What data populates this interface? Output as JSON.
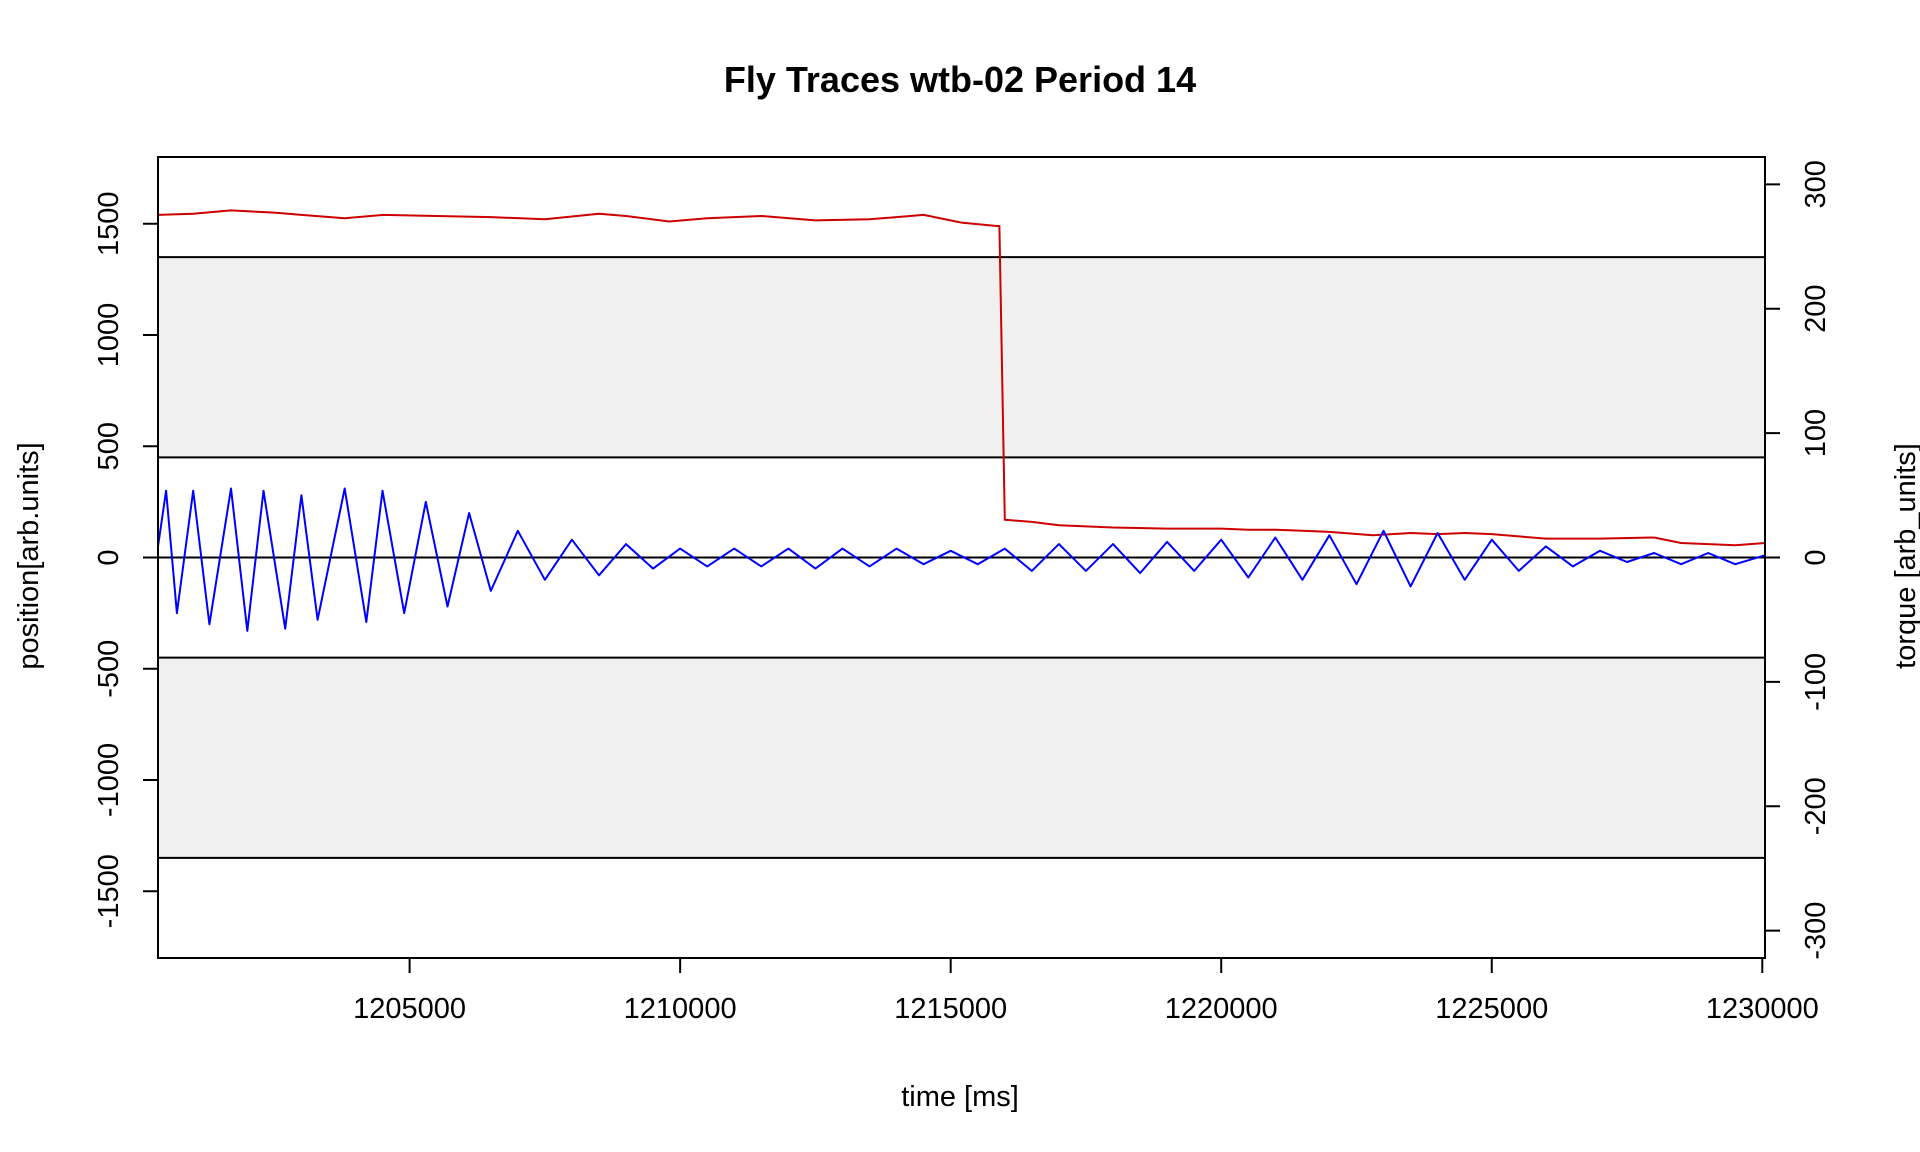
{
  "chart_data": {
    "type": "line",
    "title": "Fly Traces wtb-02 Period 14",
    "xlabel": "time [ms]",
    "ylabel_left": "position[arb.units]",
    "ylabel_right": "torque [arb_units]",
    "xlim": [
      1200350,
      1230050
    ],
    "ylim_left": [
      -1800,
      1800
    ],
    "ylim_right": [
      -322,
      322
    ],
    "x_ticks": [
      1205000,
      1210000,
      1215000,
      1220000,
      1225000,
      1230000
    ],
    "y_ticks_left": [
      -1500,
      -1000,
      -500,
      0,
      500,
      1000,
      1500
    ],
    "y_ticks_right": [
      -300,
      -200,
      -100,
      0,
      100,
      200,
      300
    ],
    "shaded_bands": [
      {
        "from": 450,
        "to": 1350
      },
      {
        "from": -1350,
        "to": -450
      }
    ],
    "hlines": [
      1350,
      450,
      0,
      -450,
      -1350
    ],
    "shade_color": "#f0f0f0",
    "series": [
      {
        "color": "#cc0000",
        "axis": "left",
        "points": [
          [
            1200350,
            1540
          ],
          [
            1201000,
            1545
          ],
          [
            1201700,
            1560
          ],
          [
            1202500,
            1550
          ],
          [
            1203000,
            1540
          ],
          [
            1203800,
            1525
          ],
          [
            1204500,
            1540
          ],
          [
            1205500,
            1535
          ],
          [
            1206500,
            1530
          ],
          [
            1207500,
            1520
          ],
          [
            1208500,
            1545
          ],
          [
            1209000,
            1535
          ],
          [
            1209800,
            1510
          ],
          [
            1210500,
            1525
          ],
          [
            1211500,
            1535
          ],
          [
            1212500,
            1515
          ],
          [
            1213500,
            1520
          ],
          [
            1214500,
            1540
          ],
          [
            1215200,
            1505
          ],
          [
            1215850,
            1490
          ],
          [
            1215900,
            1490
          ],
          [
            1216000,
            170
          ],
          [
            1216500,
            160
          ],
          [
            1217000,
            145
          ],
          [
            1218000,
            135
          ],
          [
            1219000,
            130
          ],
          [
            1220000,
            130
          ],
          [
            1220500,
            125
          ],
          [
            1221000,
            125
          ],
          [
            1221500,
            120
          ],
          [
            1222000,
            115
          ],
          [
            1222800,
            100
          ],
          [
            1223500,
            110
          ],
          [
            1224000,
            105
          ],
          [
            1224500,
            110
          ],
          [
            1225000,
            105
          ],
          [
            1225500,
            95
          ],
          [
            1226000,
            85
          ],
          [
            1227000,
            85
          ],
          [
            1228000,
            90
          ],
          [
            1228500,
            65
          ],
          [
            1229500,
            55
          ],
          [
            1230050,
            65
          ]
        ]
      },
      {
        "color": "#0000ff",
        "axis": "left",
        "points": [
          [
            1200350,
            50
          ],
          [
            1200500,
            300
          ],
          [
            1200700,
            -250
          ],
          [
            1201000,
            300
          ],
          [
            1201300,
            -300
          ],
          [
            1201700,
            310
          ],
          [
            1202000,
            -330
          ],
          [
            1202300,
            300
          ],
          [
            1202700,
            -320
          ],
          [
            1203000,
            280
          ],
          [
            1203300,
            -280
          ],
          [
            1203800,
            310
          ],
          [
            1204200,
            -290
          ],
          [
            1204500,
            300
          ],
          [
            1204900,
            -250
          ],
          [
            1205300,
            250
          ],
          [
            1205700,
            -220
          ],
          [
            1206100,
            200
          ],
          [
            1206500,
            -150
          ],
          [
            1207000,
            120
          ],
          [
            1207500,
            -100
          ],
          [
            1208000,
            80
          ],
          [
            1208500,
            -80
          ],
          [
            1209000,
            60
          ],
          [
            1209500,
            -50
          ],
          [
            1210000,
            40
          ],
          [
            1210500,
            -40
          ],
          [
            1211000,
            40
          ],
          [
            1211500,
            -40
          ],
          [
            1212000,
            40
          ],
          [
            1212500,
            -50
          ],
          [
            1213000,
            40
          ],
          [
            1213500,
            -40
          ],
          [
            1214000,
            40
          ],
          [
            1214500,
            -30
          ],
          [
            1215000,
            30
          ],
          [
            1215500,
            -30
          ],
          [
            1216000,
            40
          ],
          [
            1216500,
            -60
          ],
          [
            1217000,
            60
          ],
          [
            1217500,
            -60
          ],
          [
            1218000,
            60
          ],
          [
            1218500,
            -70
          ],
          [
            1219000,
            70
          ],
          [
            1219500,
            -60
          ],
          [
            1220000,
            80
          ],
          [
            1220500,
            -90
          ],
          [
            1221000,
            90
          ],
          [
            1221500,
            -100
          ],
          [
            1222000,
            100
          ],
          [
            1222500,
            -120
          ],
          [
            1223000,
            120
          ],
          [
            1223500,
            -130
          ],
          [
            1224000,
            110
          ],
          [
            1224500,
            -100
          ],
          [
            1225000,
            80
          ],
          [
            1225500,
            -60
          ],
          [
            1226000,
            50
          ],
          [
            1226500,
            -40
          ],
          [
            1227000,
            30
          ],
          [
            1227500,
            -20
          ],
          [
            1228000,
            20
          ],
          [
            1228500,
            -30
          ],
          [
            1229000,
            20
          ],
          [
            1229500,
            -30
          ],
          [
            1230050,
            10
          ]
        ]
      }
    ]
  }
}
